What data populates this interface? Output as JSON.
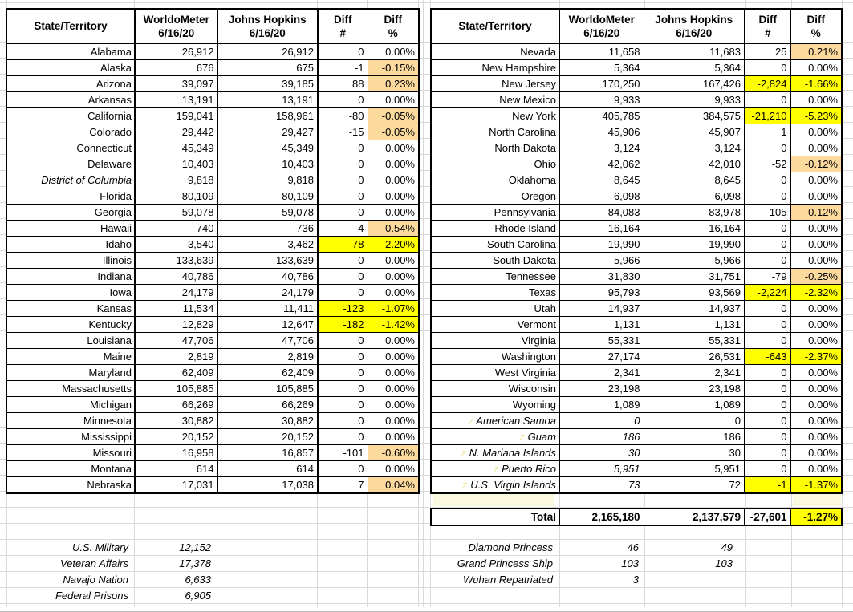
{
  "header": {
    "state": "State/Territory",
    "worldometer": [
      "WorldoMeter",
      "6/16/20"
    ],
    "johns_hopkins": [
      "Johns Hopkins",
      "6/16/20"
    ],
    "diff_num": [
      "Diff",
      "#"
    ],
    "diff_pct": [
      "Diff",
      "%"
    ]
  },
  "colors": {
    "highlight_orange": "#fcda9e",
    "highlight_yellow": "#ffff00",
    "z_prefix_yellow": "#efe6a0"
  },
  "tables": {
    "left": {
      "rows": [
        [
          "Alabama",
          "26,912",
          "26,912",
          "0",
          "0.00%",
          ""
        ],
        [
          "Alaska",
          "676",
          "675",
          "-1",
          "-0.15%",
          "o"
        ],
        [
          "Arizona",
          "39,097",
          "39,185",
          "88",
          "0.23%",
          "o"
        ],
        [
          "Arkansas",
          "13,191",
          "13,191",
          "0",
          "0.00%",
          ""
        ],
        [
          "California",
          "159,041",
          "158,961",
          "-80",
          "-0.05%",
          "o"
        ],
        [
          "Colorado",
          "29,442",
          "29,427",
          "-15",
          "-0.05%",
          "o"
        ],
        [
          "Connecticut",
          "45,349",
          "45,349",
          "0",
          "0.00%",
          ""
        ],
        [
          "Delaware",
          "10,403",
          "10,403",
          "0",
          "0.00%",
          ""
        ],
        [
          "District of Columbia",
          "9,818",
          "9,818",
          "0",
          "0.00%",
          "i"
        ],
        [
          "Florida",
          "80,109",
          "80,109",
          "0",
          "0.00%",
          ""
        ],
        [
          "Georgia",
          "59,078",
          "59,078",
          "0",
          "0.00%",
          ""
        ],
        [
          "Hawaii",
          "740",
          "736",
          "-4",
          "-0.54%",
          "o"
        ],
        [
          "Idaho",
          "3,540",
          "3,462",
          "-78",
          "-2.20%",
          "y"
        ],
        [
          "Illinois",
          "133,639",
          "133,639",
          "0",
          "0.00%",
          ""
        ],
        [
          "Indiana",
          "40,786",
          "40,786",
          "0",
          "0.00%",
          ""
        ],
        [
          "Iowa",
          "24,179",
          "24,179",
          "0",
          "0.00%",
          ""
        ],
        [
          "Kansas",
          "11,534",
          "11,411",
          "-123",
          "-1.07%",
          "y"
        ],
        [
          "Kentucky",
          "12,829",
          "12,647",
          "-182",
          "-1.42%",
          "y"
        ],
        [
          "Louisiana",
          "47,706",
          "47,706",
          "0",
          "0.00%",
          ""
        ],
        [
          "Maine",
          "2,819",
          "2,819",
          "0",
          "0.00%",
          ""
        ],
        [
          "Maryland",
          "62,409",
          "62,409",
          "0",
          "0.00%",
          ""
        ],
        [
          "Massachusetts",
          "105,885",
          "105,885",
          "0",
          "0.00%",
          ""
        ],
        [
          "Michigan",
          "66,269",
          "66,269",
          "0",
          "0.00%",
          ""
        ],
        [
          "Minnesota",
          "30,882",
          "30,882",
          "0",
          "0.00%",
          ""
        ],
        [
          "Mississippi",
          "20,152",
          "20,152",
          "0",
          "0.00%",
          ""
        ],
        [
          "Missouri",
          "16,958",
          "16,857",
          "-101",
          "-0.60%",
          "o"
        ],
        [
          "Montana",
          "614",
          "614",
          "0",
          "0.00%",
          ""
        ],
        [
          "Nebraska",
          "17,031",
          "17,038",
          "7",
          "0.04%",
          "o"
        ]
      ]
    },
    "right": {
      "rows": [
        [
          "Nevada",
          "11,658",
          "11,683",
          "25",
          "0.21%",
          "o"
        ],
        [
          "New Hampshire",
          "5,364",
          "5,364",
          "0",
          "0.00%",
          ""
        ],
        [
          "New Jersey",
          "170,250",
          "167,426",
          "-2,824",
          "-1.66%",
          "y"
        ],
        [
          "New Mexico",
          "9,933",
          "9,933",
          "0",
          "0.00%",
          ""
        ],
        [
          "New York",
          "405,785",
          "384,575",
          "-21,210",
          "-5.23%",
          "y"
        ],
        [
          "North Carolina",
          "45,906",
          "45,907",
          "1",
          "0.00%",
          ""
        ],
        [
          "North Dakota",
          "3,124",
          "3,124",
          "0",
          "0.00%",
          ""
        ],
        [
          "Ohio",
          "42,062",
          "42,010",
          "-52",
          "-0.12%",
          "o"
        ],
        [
          "Oklahoma",
          "8,645",
          "8,645",
          "0",
          "0.00%",
          ""
        ],
        [
          "Oregon",
          "6,098",
          "6,098",
          "0",
          "0.00%",
          ""
        ],
        [
          "Pennsylvania",
          "84,083",
          "83,978",
          "-105",
          "-0.12%",
          "o"
        ],
        [
          "Rhode Island",
          "16,164",
          "16,164",
          "0",
          "0.00%",
          ""
        ],
        [
          "South Carolina",
          "19,990",
          "19,990",
          "0",
          "0.00%",
          ""
        ],
        [
          "South Dakota",
          "5,966",
          "5,966",
          "0",
          "0.00%",
          ""
        ],
        [
          "Tennessee",
          "31,830",
          "31,751",
          "-79",
          "-0.25%",
          "o"
        ],
        [
          "Texas",
          "95,793",
          "93,569",
          "-2,224",
          "-2.32%",
          "y"
        ],
        [
          "Utah",
          "14,937",
          "14,937",
          "0",
          "0.00%",
          ""
        ],
        [
          "Vermont",
          "1,131",
          "1,131",
          "0",
          "0.00%",
          ""
        ],
        [
          "Virginia",
          "55,331",
          "55,331",
          "0",
          "0.00%",
          ""
        ],
        [
          "Washington",
          "27,174",
          "26,531",
          "-643",
          "-2.37%",
          "y"
        ],
        [
          "West Virginia",
          "2,341",
          "2,341",
          "0",
          "0.00%",
          ""
        ],
        [
          "Wisconsin",
          "23,198",
          "23,198",
          "0",
          "0.00%",
          ""
        ],
        [
          "Wyoming",
          "1,089",
          "1,089",
          "0",
          "0.00%",
          ""
        ],
        [
          "American Samoa",
          "0",
          "0",
          "0",
          "0.00%",
          "z"
        ],
        [
          "Guam",
          "186",
          "186",
          "0",
          "0.00%",
          "z"
        ],
        [
          "N. Mariana Islands",
          "30",
          "30",
          "0",
          "0.00%",
          "z"
        ],
        [
          "Puerto Rico",
          "5,951",
          "5,951",
          "0",
          "0.00%",
          "z"
        ],
        [
          "U.S. Virgin Islands",
          "73",
          "72",
          "-1",
          "-1.37%",
          "zy"
        ]
      ]
    }
  },
  "total": {
    "label": "Total",
    "worldometer": "2,165,180",
    "johns_hopkins": "2,137,579",
    "diff_num": "-27,601",
    "diff_pct": "-1.27%"
  },
  "left_notes": [
    {
      "label": "U.S. Military",
      "worldometer": "12,152"
    },
    {
      "label": "Veteran Affairs",
      "worldometer": "17,378"
    },
    {
      "label": "Navajo Nation",
      "worldometer": "6,633"
    },
    {
      "label": "Federal Prisons",
      "worldometer": "6,905"
    }
  ],
  "right_notes": [
    {
      "label": "Diamond Princess",
      "worldometer": "46",
      "johns_hopkins": "49"
    },
    {
      "label": "Grand Princess Ship",
      "worldometer": "103",
      "johns_hopkins": "103"
    },
    {
      "label": "Wuhan Repatriated",
      "worldometer": "3",
      "johns_hopkins": ""
    }
  ]
}
